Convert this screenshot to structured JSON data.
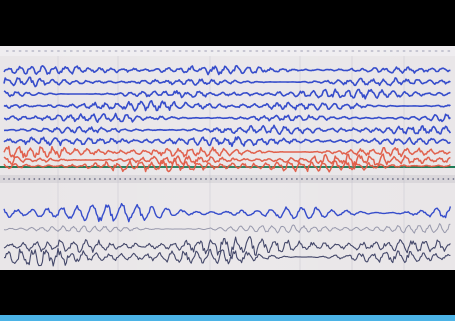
{
  "screen": {
    "title": "",
    "signal_colors": {
      "background": "#e9e6e8",
      "blue_trace": "#2c45c9",
      "red_trace": "#e05a44",
      "dark_trace": "#3b3f63",
      "marker_green": "#1e7a55",
      "bottom_accent": "#4bb3e6"
    },
    "channels": [
      {
        "group": "upper",
        "color": "blue"
      },
      {
        "group": "upper",
        "color": "blue"
      },
      {
        "group": "upper",
        "color": "blue"
      },
      {
        "group": "upper",
        "color": "blue"
      },
      {
        "group": "upper",
        "color": "blue"
      },
      {
        "group": "upper",
        "color": "blue"
      },
      {
        "group": "upper",
        "color": "blue"
      },
      {
        "group": "upper",
        "color": "red"
      },
      {
        "group": "upper",
        "color": "red"
      },
      {
        "group": "upper",
        "color": "red"
      },
      {
        "group": "lower",
        "color": "blue"
      },
      {
        "group": "lower",
        "color": "gray"
      },
      {
        "group": "lower",
        "color": "dark"
      },
      {
        "group": "lower",
        "color": "dark"
      }
    ]
  }
}
